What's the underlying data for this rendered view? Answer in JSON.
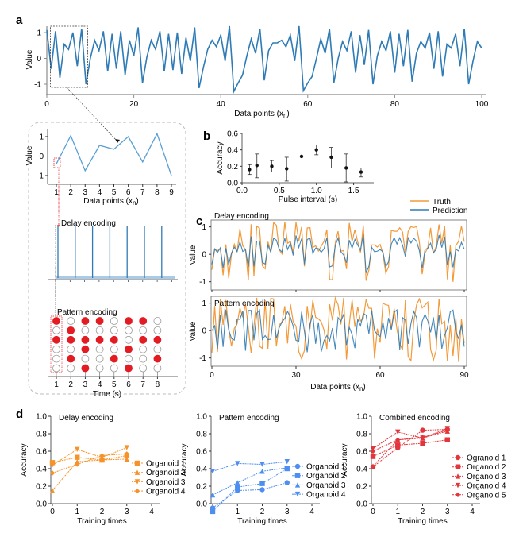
{
  "panel_labels": {
    "a": "a",
    "b": "b",
    "c": "c",
    "d": "d"
  },
  "colors": {
    "blue": "#2f7bb5",
    "orange": "#f39a3a",
    "red": "#e31b23",
    "delay_orange": "#f5932a",
    "pattern_blue": "#4e8ef0",
    "combined_red": "#e3353b",
    "inset_line": "#5a9fd4"
  },
  "chart_data": [
    {
      "id": "a_main",
      "type": "line",
      "title": "",
      "xlabel": "Data points (x",
      "xlabel_sub": "n",
      "ylabel": "Value",
      "xlim": [
        0,
        100
      ],
      "ylim": [
        -1.3,
        1.25
      ],
      "xticks": [
        0,
        20,
        40,
        60,
        80,
        100
      ],
      "yticks": [
        -1,
        0,
        1
      ],
      "series": [
        {
          "name": "signal",
          "color": "#2f7bb5",
          "y": [
            1.1,
            -0.4,
            1.05,
            -0.75,
            0.55,
            0.35,
            1.0,
            -0.3,
            1.15,
            -1.0,
            0.0,
            0.7,
            0.3,
            1.05,
            -0.5,
            0.95,
            -0.4,
            1.05,
            -0.65,
            0.7,
            0.1,
            1.2,
            -0.95,
            0.05,
            0.7,
            0.35,
            1.05,
            -0.5,
            0.95,
            -0.45,
            1.0,
            -0.6,
            0.8,
            -0.1,
            1.2,
            -1.15,
            -0.35,
            0.35,
            0.7,
            0.45,
            0.9,
            -0.1,
            1.25,
            -1.28,
            -0.95,
            -0.65,
            0.1,
            0.75,
            0.2,
            1.15,
            -0.85,
            0.3,
            0.6,
            0.6,
            0.7,
            0.45,
            0.9,
            -0.1,
            1.25,
            -1.25,
            -0.95,
            -0.7,
            0.0,
            0.75,
            0.2,
            1.15,
            -0.95,
            0.0,
            0.65,
            0.3,
            1.05,
            -0.55,
            0.9,
            -0.25,
            1.1,
            -1.0,
            0.1,
            0.65,
            0.3,
            1.05,
            -0.55,
            0.95,
            -0.3,
            1.1,
            -0.9,
            0.2,
            0.65,
            0.4,
            1.0,
            -0.4,
            1.05,
            -0.7,
            0.55,
            0.4,
            0.95,
            -0.3,
            1.15,
            -1.0,
            -0.1,
            0.65,
            0.4
          ]
        }
      ]
    },
    {
      "id": "a_inset",
      "type": "line",
      "xlabel": "Data points (x",
      "xlabel_sub": "n",
      "ylabel": "Value",
      "xlim": [
        0.5,
        9.3
      ],
      "ylim": [
        -1.4,
        1.4
      ],
      "xticks": [
        1,
        2,
        3,
        4,
        5,
        6,
        7,
        8,
        9
      ],
      "yticks": [
        -1,
        0,
        1
      ],
      "series": [
        {
          "name": "zoom",
          "color": "#5a9fd4",
          "x": [
            1,
            2,
            3,
            4,
            5,
            6,
            7,
            8,
            9
          ],
          "y": [
            -0.4,
            1.05,
            -0.75,
            0.55,
            0.35,
            1.0,
            -0.3,
            1.15,
            -1.0
          ]
        }
      ]
    },
    {
      "id": "a_delay",
      "type": "spike",
      "title": "Delay encoding",
      "spike_times": [
        1.2,
        2.4,
        3.6,
        4.8,
        6.0,
        7.2,
        8.4
      ],
      "baseline_ticks": 9
    },
    {
      "id": "a_pattern",
      "type": "raster",
      "title": "Pattern encoding",
      "xlabel": "Time (s)",
      "xticks": [
        1,
        2,
        3,
        4,
        5,
        6,
        7,
        8
      ],
      "grid": [
        [
          1,
          0,
          1,
          1,
          0,
          1,
          1,
          0
        ],
        [
          0,
          1,
          0,
          0,
          0,
          0,
          0,
          0
        ],
        [
          1,
          1,
          1,
          1,
          1,
          0,
          1,
          1
        ],
        [
          0,
          0,
          1,
          0,
          0,
          1,
          0,
          0
        ],
        [
          0,
          1,
          0,
          0,
          1,
          0,
          0,
          1
        ],
        [
          0,
          0,
          1,
          0,
          0,
          1,
          0,
          0
        ]
      ]
    },
    {
      "id": "b",
      "type": "scatter",
      "xlabel": "Pulse interval (s)",
      "ylabel": "Accuracy",
      "xlim": [
        0,
        1.75
      ],
      "ylim": [
        0,
        0.6
      ],
      "xticks": [
        0.0,
        0.5,
        1.0,
        1.5
      ],
      "xtick_labels": [
        "0.0",
        "0.5",
        "1.0",
        "1.5"
      ],
      "yticks": [
        0.0,
        0.2,
        0.4,
        0.6
      ],
      "ytick_labels": [
        "0.0",
        "0.2",
        "0.4",
        "0.6"
      ],
      "x": [
        0.1,
        0.2,
        0.4,
        0.6,
        0.8,
        1.0,
        1.2,
        1.4,
        1.6
      ],
      "y": [
        0.16,
        0.21,
        0.2,
        0.17,
        0.32,
        0.4,
        0.31,
        0.18,
        0.13
      ],
      "err_low": [
        0.1,
        0.06,
        0.13,
        0.02,
        0.32,
        0.34,
        0.18,
        0.01,
        0.07
      ],
      "err_high": [
        0.22,
        0.35,
        0.27,
        0.31,
        0.32,
        0.46,
        0.43,
        0.35,
        0.18
      ]
    },
    {
      "id": "c_delay",
      "type": "line",
      "title": "Delay encoding",
      "ylabel": "Value",
      "xlim": [
        0,
        92
      ],
      "ylim": [
        -1.3,
        1.25
      ],
      "yticks": [
        -1,
        0,
        1
      ],
      "xticks": [
        0,
        30,
        60,
        90
      ],
      "legend": {
        "position": "top-right",
        "entries": [
          "Truth",
          "Prediction"
        ]
      },
      "series": [
        {
          "name": "Truth",
          "color": "#f39a3a",
          "seed": 3
        },
        {
          "name": "Prediction",
          "color": "#2f7bb5",
          "seed": 3
        }
      ]
    },
    {
      "id": "c_pattern",
      "type": "line",
      "title": "Pattern encoding",
      "xlabel": "Data points (x",
      "xlabel_sub": "n",
      "ylabel": "Value",
      "xlim": [
        0,
        92
      ],
      "ylim": [
        -1.3,
        1.25
      ],
      "yticks": [
        -1,
        0,
        1
      ],
      "xticks": [
        0,
        30,
        60,
        90
      ],
      "series": [
        {
          "name": "Truth",
          "color": "#f39a3a",
          "seed": 7
        },
        {
          "name": "Prediction",
          "color": "#2f7bb5",
          "seed": 11
        }
      ]
    },
    {
      "id": "d_delay",
      "type": "line",
      "title": "Delay encoding",
      "xlabel": "Training times",
      "ylabel": "Accuracy",
      "xlim": [
        0,
        4.3
      ],
      "ylim": [
        0,
        1.0
      ],
      "xticks": [
        0,
        1,
        2,
        3,
        4
      ],
      "yticks": [
        0.0,
        0.2,
        0.4,
        0.6,
        0.8,
        1.0
      ],
      "ytick_labels": [
        "0.0",
        "0.2",
        "0.4",
        "0.6",
        "0.8",
        "1.0"
      ],
      "color": "#f5932a",
      "x": [
        0,
        1,
        2,
        3
      ],
      "series": [
        {
          "name": "Organoid 1",
          "marker": "square",
          "values": [
            0.47,
            0.53,
            0.5,
            0.55
          ]
        },
        {
          "name": "Organoid 2",
          "marker": "triangle-up",
          "values": [
            0.15,
            0.48,
            0.5,
            0.51
          ]
        },
        {
          "name": "Organoid 3",
          "marker": "triangle-down",
          "values": [
            0.44,
            0.62,
            0.53,
            0.64
          ]
        },
        {
          "name": "Organoid 4",
          "marker": "diamond",
          "values": [
            0.35,
            0.45,
            0.55,
            0.57
          ]
        }
      ]
    },
    {
      "id": "d_pattern",
      "type": "line",
      "title": "Pattern encoding",
      "xlabel": "Training times",
      "ylabel": "Accuracy",
      "xlim": [
        0,
        4.3
      ],
      "ylim": [
        0,
        1.0
      ],
      "xticks": [
        0,
        1,
        2,
        3,
        4
      ],
      "yticks": [
        0.0,
        0.2,
        0.4,
        0.6,
        0.8,
        1.0
      ],
      "ytick_labels": [
        "0.0",
        "0.2",
        "0.4",
        "0.6",
        "0.8",
        "1.0"
      ],
      "color": "#4e8ef0",
      "x": [
        0,
        1,
        2,
        3
      ],
      "series": [
        {
          "name": "Organoid 1",
          "marker": "circle",
          "values": [
            -0.05,
            0.15,
            0.16,
            0.24
          ]
        },
        {
          "name": "Organoid 2",
          "marker": "square",
          "values": [
            -0.09,
            0.19,
            0.23,
            0.4
          ]
        },
        {
          "name": "Organoid 3",
          "marker": "triangle-up",
          "values": [
            0.1,
            0.24,
            0.37,
            0.41
          ]
        },
        {
          "name": "Organoid 4",
          "marker": "triangle-down",
          "values": [
            0.37,
            0.46,
            0.45,
            0.48
          ]
        }
      ]
    },
    {
      "id": "d_combined",
      "type": "line",
      "title": "Combined encoding",
      "xlabel": "Training times",
      "ylabel": "Accuracy",
      "xlim": [
        0,
        4.3
      ],
      "ylim": [
        0,
        1.0
      ],
      "xticks": [
        0,
        1,
        2,
        3,
        4
      ],
      "yticks": [
        0.0,
        0.2,
        0.4,
        0.6,
        0.8,
        1.0
      ],
      "ytick_labels": [
        "0.0",
        "0.2",
        "0.4",
        "0.6",
        "0.8",
        "1.0"
      ],
      "color": "#e3353b",
      "x": [
        0,
        1,
        2,
        3
      ],
      "series": [
        {
          "name": "Ogranoid 1",
          "marker": "circle",
          "values": [
            0.42,
            0.64,
            0.84,
            0.85
          ]
        },
        {
          "name": "Organoid 2",
          "marker": "square",
          "values": [
            0.54,
            0.67,
            0.69,
            0.73
          ]
        },
        {
          "name": "Organoid 3",
          "marker": "triangle-up",
          "values": [
            0.43,
            0.73,
            0.75,
            0.83
          ]
        },
        {
          "name": "Organoid 4",
          "marker": "triangle-down",
          "values": [
            0.63,
            0.82,
            0.75,
            0.86
          ]
        },
        {
          "name": "Organoid 5",
          "marker": "diamond",
          "values": [
            0.6,
            0.73,
            0.76,
            0.84
          ]
        }
      ]
    }
  ]
}
